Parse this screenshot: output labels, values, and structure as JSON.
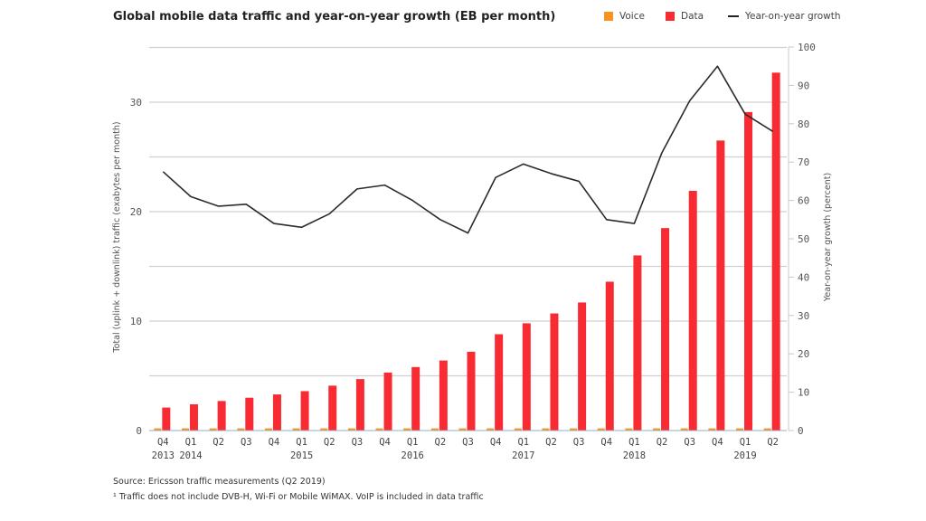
{
  "chart_data": {
    "type": "bar",
    "title": "Global mobile data traffic and year-on-year growth (EB per month)",
    "legend": [
      {
        "name": "Voice",
        "color": "#f7931e",
        "kind": "bar"
      },
      {
        "name": "Data",
        "color": "#f82b33",
        "kind": "bar"
      },
      {
        "name": "Year-on-year growth",
        "color": "#222222",
        "kind": "line"
      }
    ],
    "legend_position": "top-right",
    "categories": [
      "Q4",
      "Q1",
      "Q2",
      "Q3",
      "Q4",
      "Q1",
      "Q2",
      "Q3",
      "Q4",
      "Q1",
      "Q2",
      "Q3",
      "Q4",
      "Q1",
      "Q2",
      "Q3",
      "Q4",
      "Q1",
      "Q2",
      "Q3",
      "Q4",
      "Q1",
      "Q2"
    ],
    "year_labels": [
      "2013",
      "2014",
      "",
      "",
      "",
      "2015",
      "",
      "",
      "",
      "2016",
      "",
      "",
      "",
      "2017",
      "",
      "",
      "",
      "2018",
      "",
      "",
      "",
      "2019",
      ""
    ],
    "series": [
      {
        "name": "Voice",
        "axis": "left",
        "values": [
          0.2,
          0.2,
          0.2,
          0.2,
          0.2,
          0.2,
          0.2,
          0.2,
          0.2,
          0.2,
          0.2,
          0.2,
          0.2,
          0.2,
          0.2,
          0.2,
          0.2,
          0.2,
          0.2,
          0.2,
          0.2,
          0.2,
          0.2
        ]
      },
      {
        "name": "Data",
        "axis": "left",
        "values": [
          2.1,
          2.4,
          2.7,
          3.0,
          3.3,
          3.6,
          4.1,
          4.7,
          5.3,
          5.8,
          6.4,
          7.2,
          8.8,
          9.8,
          10.7,
          11.7,
          13.6,
          16.0,
          18.5,
          21.9,
          26.5,
          29.1,
          32.7
        ]
      },
      {
        "name": "Year-on-year growth",
        "axis": "right",
        "type": "line",
        "values": [
          67.5,
          61,
          58.5,
          59,
          54,
          53,
          56.5,
          63,
          64,
          60,
          55,
          51.5,
          66,
          69.5,
          67,
          65,
          55,
          54,
          72.5,
          86,
          95,
          82.5,
          78
        ]
      }
    ],
    "ylabel": "Total (uplink + downlink) traffic (exabytes per month)",
    "ylim": [
      0,
      35
    ],
    "yticks": [
      0,
      10,
      20,
      30
    ],
    "y2label": "Year-on-year growth (percent)",
    "y2lim": [
      0,
      100
    ],
    "y2ticks": [
      0,
      10,
      20,
      30,
      40,
      50,
      60,
      70,
      80,
      90,
      100
    ],
    "grid": true
  },
  "footer": {
    "source": "Source: Ericsson traffic measurements (Q2 2019)",
    "note": "¹ Traffic does not include DVB-H, Wi-Fi or Mobile WiMAX. VoIP is included in data traffic"
  }
}
